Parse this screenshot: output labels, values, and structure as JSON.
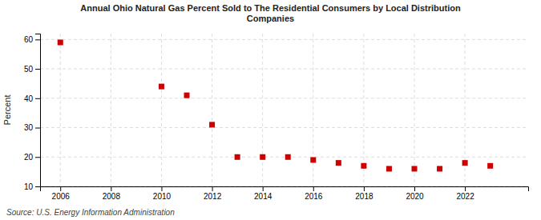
{
  "chart_data": {
    "type": "scatter",
    "title": "Annual Ohio Natural Gas Percent Sold to The Residential Consumers by Local Distribution\nCompanies",
    "ylabel": "Percent",
    "source": "Source: U.S. Energy Information Administration",
    "x": [
      2006,
      2010,
      2011,
      2012,
      2013,
      2014,
      2015,
      2016,
      2017,
      2018,
      2019,
      2020,
      2021,
      2022,
      2023
    ],
    "values": [
      59,
      44,
      41,
      31,
      20,
      20,
      20,
      19,
      18,
      17,
      16,
      16,
      16,
      18,
      17
    ],
    "color": "#cc0000",
    "marker": "square",
    "xlim": [
      2005.2,
      2024.5
    ],
    "ylim": [
      10,
      62
    ],
    "xticks": [
      2006,
      2008,
      2010,
      2012,
      2014,
      2016,
      2018,
      2020,
      2022
    ],
    "yticks": [
      10,
      20,
      30,
      40,
      50,
      60
    ],
    "grid": true
  }
}
